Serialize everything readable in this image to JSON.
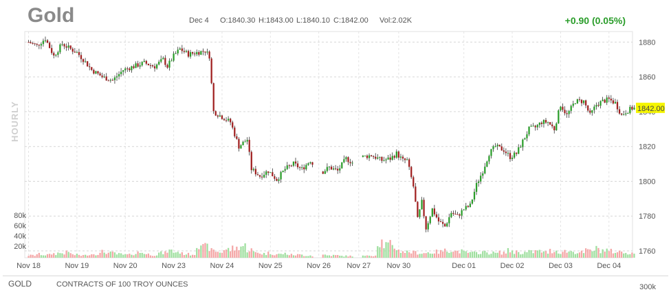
{
  "header": {
    "symbol": "Gold",
    "date": "Dec 4",
    "open": "O:1840.30",
    "high": "H:1843.00",
    "low": "L:1840.10",
    "close": "C:1842.00",
    "volume": "Vol:2.02K",
    "change": "+0.90 (0.05%)"
  },
  "side_label": "HOURLY",
  "footer": {
    "symbol": "GOLD",
    "contract": "CONTRACTS OF 100 TROY OUNCES",
    "volume_scale": "300k"
  },
  "colors": {
    "up": "#2a9d2a",
    "down": "#a02020",
    "wick": "#333333",
    "vol_up": "#9fdf9f",
    "vol_down": "#f4a6a6",
    "last_price_bg": "#f5f500",
    "change": "#2a9d2a"
  },
  "chart_data": {
    "type": "candlestick",
    "interval": "hourly",
    "last_price_label": "1842.00",
    "ylim": [
      1760,
      1890
    ],
    "yticks": [
      "1880",
      "1860",
      "1840",
      "1820",
      "1800",
      "1780",
      "1760"
    ],
    "volume_ticks": [
      "80k",
      "60k",
      "40k",
      "20k"
    ],
    "xlabels": [
      "Nov 18",
      "Nov 19",
      "Nov 20",
      "Nov 23",
      "Nov 24",
      "Nov 25",
      "Nov 26",
      "Nov 27",
      "Nov 30",
      "Dec 01",
      "Dec 02",
      "Dec 03",
      "Dec 04"
    ],
    "xlabel_pos": [
      0,
      23,
      46,
      69,
      92,
      115,
      138,
      157,
      176,
      207,
      230,
      253,
      276
    ],
    "gaps": [
      138,
      157
    ],
    "price_path": [
      1880,
      1878,
      1882,
      1872,
      1879,
      1876,
      1874,
      1870,
      1864,
      1860,
      1858,
      1864,
      1866,
      1868,
      1866,
      1870,
      1866,
      1872,
      1876,
      1873,
      1874,
      1875,
      1872,
      1840,
      1837,
      1834,
      1820,
      1824,
      1807,
      1803,
      1806,
      1801,
      1807,
      1810,
      1807,
      1812,
      1804,
      1808,
      1806,
      1813,
      1810,
      1814,
      1815,
      1812,
      1813,
      1816,
      1812,
      1812,
      1797,
      1778,
      1788,
      1773,
      1784,
      1777,
      1774,
      1782,
      1780,
      1784,
      1786,
      1798,
      1806,
      1816,
      1820,
      1818,
      1814,
      1816,
      1823,
      1830,
      1831,
      1834,
      1834,
      1830,
      1844,
      1838,
      1846,
      1846,
      1838,
      1844,
      1846,
      1847,
      1845,
      1838,
      1840,
      1842
    ],
    "path_pos": [
      0,
      4,
      8,
      12,
      16,
      20,
      23,
      26,
      30,
      35,
      40,
      45,
      50,
      55,
      60,
      64,
      66,
      69,
      72,
      76,
      80,
      84,
      86,
      88,
      92,
      96,
      100,
      104,
      106,
      110,
      114,
      118,
      122,
      126,
      130,
      134,
      138,
      143,
      147,
      151,
      155,
      159,
      163,
      168,
      172,
      175,
      178,
      180,
      183,
      185,
      187,
      189,
      192,
      195,
      198,
      201,
      204,
      207,
      210,
      213,
      216,
      219,
      222,
      226,
      229,
      232,
      235,
      238,
      241,
      244,
      247,
      250,
      253,
      256,
      260,
      264,
      267,
      270,
      273,
      276,
      279,
      282,
      284,
      287
    ],
    "volume_profile": [
      4,
      6,
      5,
      7,
      8,
      9,
      5,
      4,
      6,
      7,
      10,
      8,
      6,
      5,
      7,
      9,
      6,
      5,
      8,
      12,
      10,
      7,
      6,
      25,
      18,
      12,
      10,
      14,
      16,
      20,
      14,
      9,
      7,
      8,
      6,
      7,
      5,
      5,
      4,
      3,
      5,
      4,
      4,
      3,
      3,
      4,
      3,
      4,
      28,
      22,
      18,
      12,
      10,
      9,
      8,
      9,
      10,
      12,
      14,
      11,
      9,
      8,
      10,
      9,
      8,
      9,
      12,
      10,
      9,
      10,
      11,
      9,
      12,
      10,
      11,
      10,
      9,
      12,
      15,
      13,
      11,
      10,
      9,
      8
    ]
  }
}
